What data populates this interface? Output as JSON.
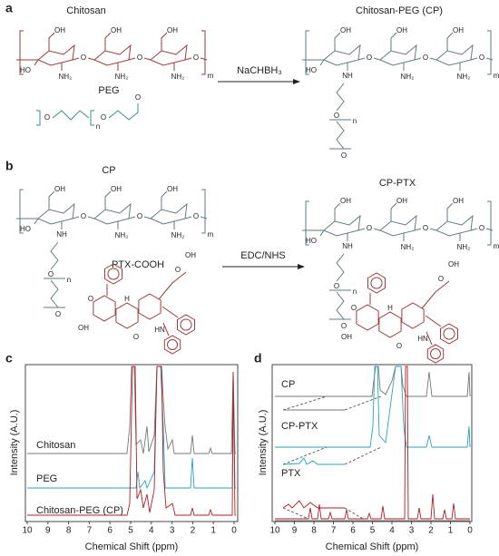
{
  "panel_a": {
    "label": "a",
    "chitosan": {
      "name": "Chitosan",
      "oh": "OH",
      "nh2": "NH₂",
      "o": "O",
      "ho": "HO",
      "m": "m"
    },
    "peg": {
      "name": "PEG",
      "o": "O",
      "n": "n"
    },
    "reagent": "NaCHBH₃",
    "product": {
      "name": "Chitosan-PEG (CP)",
      "nh": "NH"
    }
  },
  "panel_b": {
    "label": "b",
    "cp": {
      "name": "CP"
    },
    "ptx": {
      "name": "PTX-COOH",
      "oh": "OH",
      "o": "O",
      "h": "H",
      "hn": "HN"
    },
    "reagent": "EDC/NHS",
    "product": {
      "name": "CP-PTX"
    }
  },
  "panel_c": {
    "label": "c",
    "traces": [
      "Chitosan",
      "PEG",
      "Chitosan-PEG (CP)"
    ],
    "x_label": "Chemical Shift (ppm)",
    "y_label": "Intensity (A.U.)",
    "xlim": [
      10,
      0
    ],
    "xticks": [
      10,
      9,
      8,
      7,
      6,
      5,
      4,
      3,
      2,
      1,
      0
    ]
  },
  "panel_d": {
    "label": "d",
    "traces": [
      "CP",
      "CP-PTX",
      "PTX"
    ],
    "x_label": "Chemical Shift (ppm)",
    "y_label": "Intensity (A.U.)",
    "xlim": [
      10,
      0
    ],
    "xticks": [
      10,
      9,
      8,
      7,
      6,
      5,
      4,
      3,
      2,
      1,
      0
    ]
  }
}
